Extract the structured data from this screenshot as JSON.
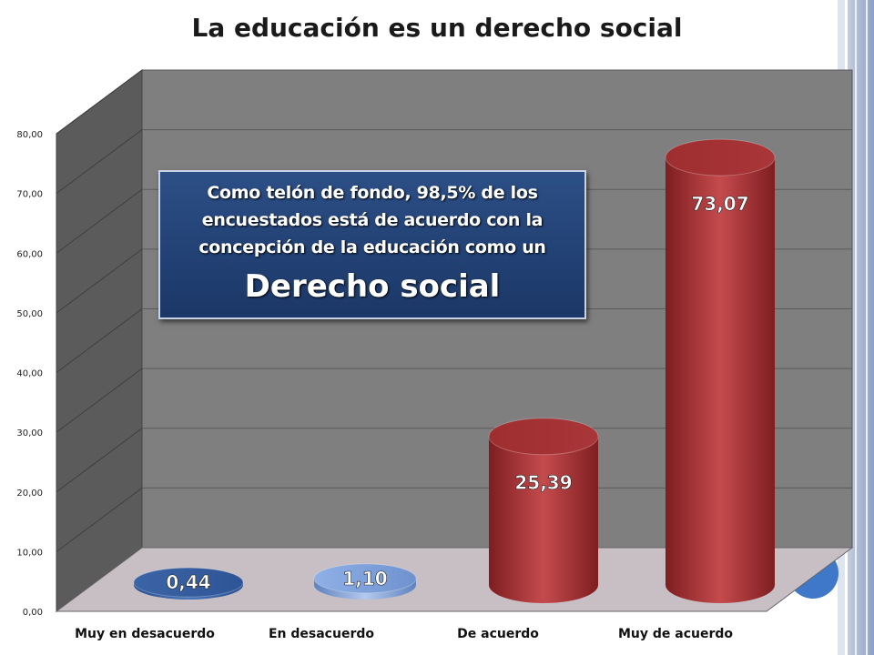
{
  "slide": {
    "title": "La educación es un derecho social",
    "callout_text": "Como telón de fondo, 98,5% de los encuestados está de acuerdo con la concepción de la educación como un",
    "callout_emphasis": "Derecho social"
  },
  "chart_data": {
    "type": "bar",
    "categories": [
      "Muy en desacuerdo",
      "En desacuerdo",
      "De acuerdo",
      "Muy de acuerdo"
    ],
    "values": [
      0.44,
      1.1,
      25.39,
      73.07
    ],
    "data_labels": [
      "0,44",
      "1,10",
      "25,39",
      "73,07"
    ],
    "ylim": [
      0,
      80
    ],
    "yticks": [
      "0,00",
      "10,00",
      "20,00",
      "30,00",
      "40,00",
      "50,00",
      "60,00",
      "70,00",
      "80,00"
    ],
    "grid": true,
    "colors": {
      "low_bar": "#3a63a8",
      "low_bar_light": "#7fa2da",
      "high_bar": "#b83c3e",
      "wall": "#7f7f7f",
      "side_wall": "#5b5b5b",
      "floor": "#c8bfc4"
    }
  }
}
